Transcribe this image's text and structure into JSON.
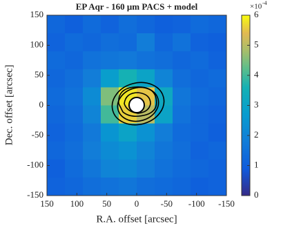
{
  "chart_data": {
    "type": "heatmap",
    "title": "EP Aqr - 160 μm PACS + model",
    "x_label": "R.A. offset [arcsec]",
    "y_label": "Dec. offset [arcsec]",
    "x": [
      135,
      105,
      75,
      45,
      15,
      -15,
      -45,
      -75,
      -105,
      -135
    ],
    "y": [
      135,
      105,
      75,
      45,
      15,
      -15,
      -45,
      -75,
      -105,
      -135
    ],
    "z": [
      [
        1.2,
        1.0,
        1.3,
        1.1,
        1.4,
        1.2,
        1.0,
        1.1,
        1.3,
        1.2
      ],
      [
        1.1,
        1.3,
        1.2,
        1.4,
        1.3,
        1.8,
        1.2,
        1.5,
        1.1,
        1.0
      ],
      [
        1.3,
        1.2,
        1.5,
        1.6,
        1.7,
        1.5,
        1.4,
        1.2,
        1.3,
        1.1
      ],
      [
        1.2,
        1.4,
        1.8,
        2.8,
        3.6,
        3.0,
        2.0,
        1.4,
        1.2,
        1.3
      ],
      [
        1.3,
        1.5,
        2.2,
        4.5,
        5.8,
        5.5,
        3.2,
        1.6,
        1.3,
        1.2
      ],
      [
        1.2,
        1.4,
        2.0,
        4.0,
        5.6,
        5.0,
        3.0,
        1.5,
        1.2,
        1.1
      ],
      [
        1.1,
        1.3,
        1.7,
        2.5,
        3.0,
        2.4,
        1.8,
        1.3,
        1.2,
        1.0
      ],
      [
        1.2,
        1.4,
        1.8,
        2.2,
        2.4,
        2.0,
        1.6,
        1.4,
        1.1,
        1.2
      ],
      [
        1.0,
        1.3,
        1.6,
        2.0,
        2.1,
        1.8,
        1.5,
        1.3,
        1.2,
        1.1
      ],
      [
        1.1,
        1.2,
        1.4,
        1.5,
        1.6,
        1.4,
        1.3,
        1.2,
        1.0,
        1.1
      ]
    ],
    "xlim": [
      150,
      -150
    ],
    "xticks": [
      150,
      100,
      50,
      0,
      -50,
      -100,
      -150
    ],
    "ylim": [
      -150,
      150
    ],
    "yticks": [
      150,
      100,
      50,
      0,
      -50,
      -100,
      -150
    ],
    "zlim": [
      0,
      6
    ],
    "zticks": [
      0,
      1,
      2,
      3,
      4,
      5,
      6
    ],
    "colorbar_multiplier": "×10",
    "colorbar_exponent": "-4",
    "colormap": "parula"
  }
}
